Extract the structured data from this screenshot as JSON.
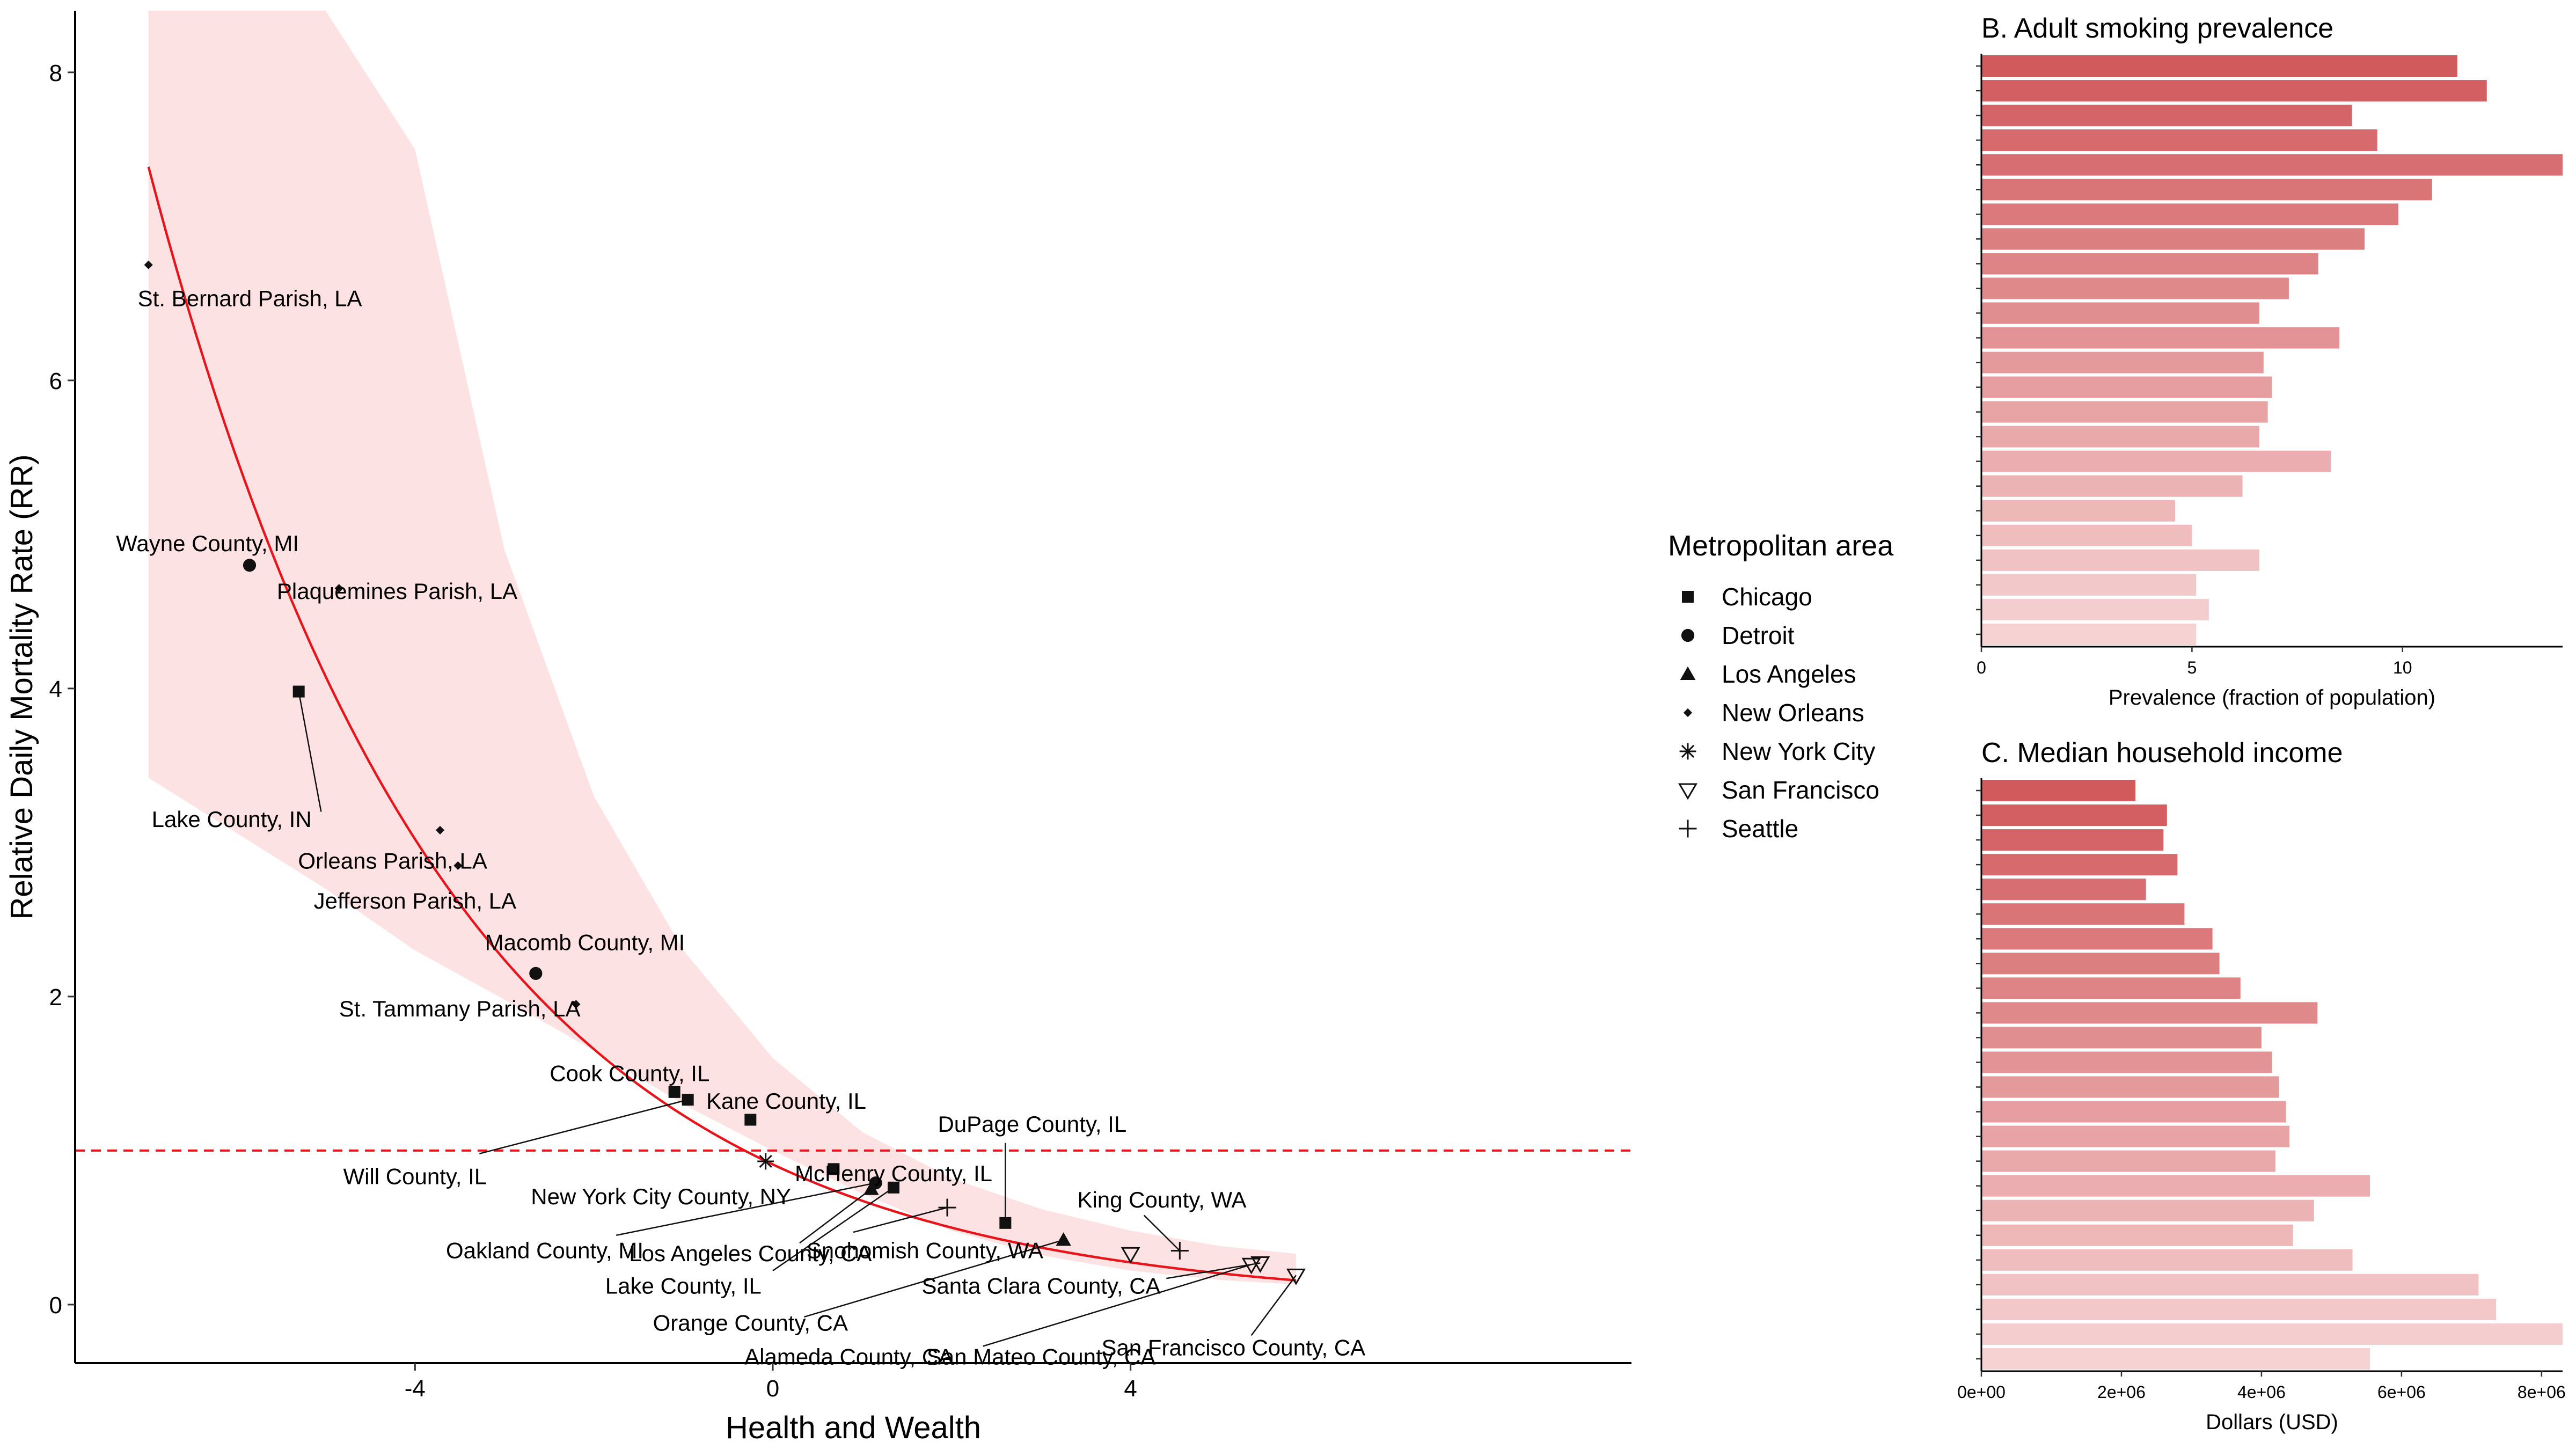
{
  "chart_data": [
    {
      "type": "scatter",
      "xlabel": "Health and Wealth",
      "ylabel": "Relative Daily Mortality Rate (RR)",
      "xlim": [
        -7.8,
        9.6
      ],
      "ylim": [
        -0.38,
        8.4
      ],
      "x_ticks": [
        -4,
        0,
        4
      ],
      "y_ticks": [
        0,
        2,
        4,
        6,
        8
      ],
      "x_tick_labels": [
        "-4",
        "0",
        "4"
      ],
      "y_tick_labels": [
        "0",
        "2",
        "4",
        "6",
        "8"
      ],
      "reference_line_y": 1,
      "fit": {
        "model": "exponential",
        "a": 0.91,
        "b": 0.3,
        "x_range": [
          -6.98,
          5.85
        ]
      },
      "band": [
        {
          "x": -6.98,
          "lower": 3.42,
          "upper": 8.4
        },
        {
          "x": -5,
          "lower": 2.7,
          "upper": 8.4
        },
        {
          "x": -4,
          "lower": 2.3,
          "upper": 7.5
        },
        {
          "x": -3,
          "lower": 1.98,
          "upper": 4.9
        },
        {
          "x": -2,
          "lower": 1.65,
          "upper": 3.3
        },
        {
          "x": -1,
          "lower": 1.3,
          "upper": 2.3
        },
        {
          "x": 0,
          "lower": 1.0,
          "upper": 1.6
        },
        {
          "x": 1,
          "lower": 0.72,
          "upper": 1.12
        },
        {
          "x": 2,
          "lower": 0.48,
          "upper": 0.82
        },
        {
          "x": 3,
          "lower": 0.32,
          "upper": 0.62
        },
        {
          "x": 4,
          "lower": 0.22,
          "upper": 0.48
        },
        {
          "x": 5,
          "lower": 0.16,
          "upper": 0.38
        },
        {
          "x": 5.85,
          "lower": 0.13,
          "upper": 0.33
        }
      ],
      "legend": {
        "title": "Metropolitan area",
        "items": [
          {
            "name": "Chicago",
            "shape": "square"
          },
          {
            "name": "Detroit",
            "shape": "circle"
          },
          {
            "name": "Los Angeles",
            "shape": "triangle"
          },
          {
            "name": "New Orleans",
            "shape": "diamond"
          },
          {
            "name": "New York City",
            "shape": "asterisk"
          },
          {
            "name": "San Francisco",
            "shape": "open-triangle-down"
          },
          {
            "name": "Seattle",
            "shape": "plus"
          }
        ]
      },
      "points": [
        {
          "label": "St. Bernard Parish, LA",
          "area": "New Orleans",
          "x": -6.98,
          "y": 6.75,
          "lx": -7.1,
          "ly": 6.53,
          "anchor": "start"
        },
        {
          "label": "Wayne County, MI",
          "area": "Detroit",
          "x": -5.85,
          "y": 4.8,
          "lx": -6.32,
          "ly": 4.94,
          "anchor": "middle"
        },
        {
          "label": "Plaquemines Parish, LA",
          "area": "New Orleans",
          "x": -4.85,
          "y": 4.65,
          "lx": -4.2,
          "ly": 4.63,
          "anchor": "middle"
        },
        {
          "label": "Lake County, IN",
          "area": "Chicago",
          "x": -5.3,
          "y": 3.98,
          "lx": -6.05,
          "ly": 3.15,
          "anchor": "middle",
          "leader": [
            -5.05,
            3.2
          ]
        },
        {
          "label": "Orleans Parish, LA",
          "area": "New Orleans",
          "x": -3.72,
          "y": 3.08,
          "lx": -4.25,
          "ly": 2.88,
          "anchor": "middle"
        },
        {
          "label": "Jefferson Parish, LA",
          "area": "New Orleans",
          "x": -3.52,
          "y": 2.85,
          "lx": -4.0,
          "ly": 2.62,
          "anchor": "middle"
        },
        {
          "label": "Macomb County, MI",
          "area": "Detroit",
          "x": -2.65,
          "y": 2.15,
          "lx": -2.1,
          "ly": 2.35,
          "anchor": "middle"
        },
        {
          "label": "St. Tammany Parish, LA",
          "area": "New Orleans",
          "x": -2.2,
          "y": 1.95,
          "lx": -3.5,
          "ly": 1.92,
          "anchor": "middle"
        },
        {
          "label": "Cook County, IL",
          "area": "Chicago",
          "x": -1.1,
          "y": 1.38,
          "lx": -1.6,
          "ly": 1.5,
          "anchor": "middle"
        },
        {
          "label": "Kane County, IL",
          "area": "Chicago",
          "x": -0.25,
          "y": 1.2,
          "lx": 0.15,
          "ly": 1.32,
          "anchor": "middle"
        },
        {
          "label": "Will County, IL",
          "area": "Chicago",
          "x": -0.95,
          "y": 1.33,
          "lx": -4.0,
          "ly": 0.83,
          "anchor": "middle",
          "leader": [
            -3.28,
            0.98
          ]
        },
        {
          "label": "New York City County, NY",
          "area": "New York City",
          "x": -0.08,
          "y": 0.93,
          "lx": -1.25,
          "ly": 0.7,
          "anchor": "middle"
        },
        {
          "label": "McHenry County, IL",
          "area": "Chicago",
          "x": 0.68,
          "y": 0.88,
          "lx": 1.35,
          "ly": 0.85,
          "anchor": "middle"
        },
        {
          "label": "DuPage County, IL",
          "area": "Chicago",
          "x": 2.6,
          "y": 0.53,
          "lx": 2.9,
          "ly": 1.17,
          "anchor": "middle",
          "leader": [
            2.6,
            1.05
          ]
        },
        {
          "label": "Oakland County, MI",
          "area": "Detroit",
          "x": 1.15,
          "y": 0.79,
          "lx": -2.55,
          "ly": 0.35,
          "anchor": "middle",
          "leader": [
            -1.75,
            0.45
          ]
        },
        {
          "label": "Los Angeles County, CA",
          "area": "Los Angeles",
          "x": 1.1,
          "y": 0.75,
          "lx": -0.25,
          "ly": 0.33,
          "anchor": "middle",
          "leader": [
            0.3,
            0.4
          ]
        },
        {
          "label": "Snohomish County, WA",
          "area": "Seattle",
          "x": 1.95,
          "y": 0.63,
          "lx": 1.7,
          "ly": 0.35,
          "anchor": "middle",
          "leader": [
            0.9,
            0.47
          ]
        },
        {
          "label": "Lake County, IL",
          "area": "Chicago",
          "x": 1.35,
          "y": 0.76,
          "lx": -1.0,
          "ly": 0.12,
          "anchor": "middle",
          "leader": [
            0.0,
            0.22
          ]
        },
        {
          "label": "Santa Clara County, CA",
          "area": "San Francisco",
          "x": 5.45,
          "y": 0.27,
          "lx": 3.0,
          "ly": 0.12,
          "anchor": "middle",
          "leader": [
            4.4,
            0.17
          ]
        },
        {
          "label": "King County, WA",
          "area": "Seattle",
          "x": 4.55,
          "y": 0.35,
          "lx": 4.35,
          "ly": 0.68,
          "anchor": "middle",
          "leader": [
            4.15,
            0.58
          ]
        },
        {
          "label": "Orange County, CA",
          "area": "Los Angeles",
          "x": 3.25,
          "y": 0.42,
          "lx": -0.25,
          "ly": -0.12,
          "anchor": "middle",
          "leader": [
            0.35,
            -0.08
          ]
        },
        {
          "label": "Alameda County, CA",
          "area": "San Francisco",
          "x": 4.0,
          "y": 0.33,
          "lx": 0.85,
          "ly": -0.34,
          "anchor": "middle"
        },
        {
          "label": "San Mateo County, CA",
          "area": "San Francisco",
          "x": 5.35,
          "y": 0.26,
          "lx": 3.0,
          "ly": -0.34,
          "anchor": "middle",
          "leader": [
            2.35,
            -0.27
          ]
        },
        {
          "label": "San Francisco County, CA",
          "area": "San Francisco",
          "x": 5.85,
          "y": 0.19,
          "lx": 5.15,
          "ly": -0.28,
          "anchor": "middle",
          "leader": [
            5.35,
            -0.2
          ]
        }
      ]
    },
    {
      "type": "bar",
      "title": "B. Adult smoking prevalence",
      "xlabel": "Prevalence (fraction of population)",
      "ylabel": "",
      "orientation": "horizontal",
      "xlim": [
        0,
        13.8
      ],
      "x_ticks": [
        0,
        5,
        10
      ],
      "x_tick_labels": [
        "0",
        "5",
        "10"
      ],
      "values": [
        11.3,
        12.0,
        8.8,
        9.4,
        13.8,
        10.7,
        9.9,
        9.1,
        8.0,
        7.3,
        6.6,
        8.5,
        6.7,
        6.9,
        6.8,
        6.6,
        8.3,
        6.2,
        4.6,
        5.0,
        6.6,
        5.1,
        5.4,
        5.1
      ]
    },
    {
      "type": "bar",
      "title": "C. Median household income",
      "xlabel": "Dollars (USD)",
      "ylabel": "",
      "orientation": "horizontal",
      "xlim": [
        0,
        8300000
      ],
      "x_ticks": [
        0,
        2000000,
        4000000,
        6000000,
        8000000
      ],
      "x_tick_labels": [
        "0e+00",
        "2e+06",
        "4e+06",
        "6e+06",
        "8e+06"
      ],
      "values": [
        2200000,
        2650000,
        2600000,
        2800000,
        2350000,
        2900000,
        3300000,
        3400000,
        3700000,
        4800000,
        4000000,
        4150000,
        4250000,
        4350000,
        4400000,
        4200000,
        5550000,
        4750000,
        4450000,
        5300000,
        7100000,
        7350000,
        8300000,
        5550000
      ]
    }
  ]
}
